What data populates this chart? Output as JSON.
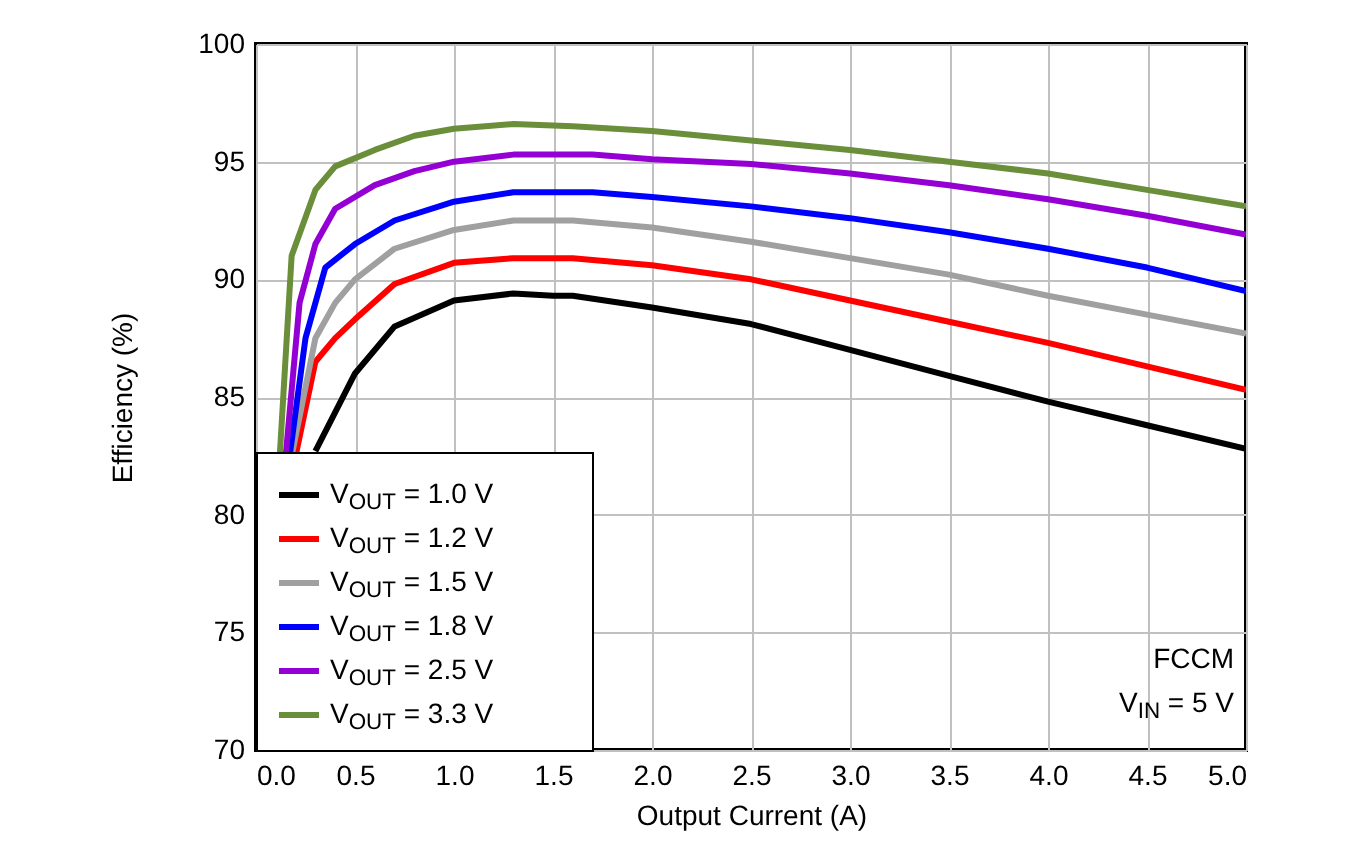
{
  "chart_data": {
    "type": "line",
    "xlabel": "Output Current (A)",
    "ylabel": "Efficiency  (%)",
    "xlim": [
      0,
      5
    ],
    "ylim": [
      70,
      100
    ],
    "xticks": [
      {
        "value": 0,
        "label": "0.0"
      },
      {
        "value": 0.5,
        "label": "0.5"
      },
      {
        "value": 1,
        "label": "1.0"
      },
      {
        "value": 1.5,
        "label": "1.5"
      },
      {
        "value": 2,
        "label": "2.0"
      },
      {
        "value": 2.5,
        "label": "2.5"
      },
      {
        "value": 3,
        "label": "3.0"
      },
      {
        "value": 3.5,
        "label": "3.5"
      },
      {
        "value": 4,
        "label": "4.0"
      },
      {
        "value": 4.5,
        "label": "4.5"
      },
      {
        "value": 5,
        "label": "5.0"
      }
    ],
    "yticks": [
      70,
      75,
      80,
      85,
      90,
      95,
      100
    ],
    "grid": true,
    "legend": "bottom left",
    "line_style": "solid",
    "annotations": [
      "FCCM",
      "V$_{IN}$ = 5 V"
    ],
    "series": [
      {
        "name": "V$_{OUT}$ = 1.0 V",
        "color": "#000000",
        "x": [
          0.3,
          0.5,
          0.7,
          1.0,
          1.3,
          1.5,
          1.6,
          2.0,
          2.5,
          3.0,
          3.5,
          4.0,
          4.5,
          5.0
        ],
        "values": [
          82.7,
          86,
          88,
          89.1,
          89.4,
          89.3,
          89.3,
          88.8,
          88.1,
          87.0,
          85.9,
          84.8,
          83.8,
          82.8
        ]
      },
      {
        "name": "V$_{OUT}$ = 1.2 V",
        "color": "#ff0000",
        "x": [
          0.2,
          0.3,
          0.4,
          0.5,
          0.7,
          1.0,
          1.3,
          1.6,
          2.0,
          2.5,
          3.0,
          3.5,
          4.0,
          4.5,
          5.0
        ],
        "values": [
          82.5,
          86.5,
          87.5,
          88.3,
          89.8,
          90.7,
          90.9,
          90.9,
          90.6,
          90.0,
          89.1,
          88.2,
          87.3,
          86.3,
          85.3
        ]
      },
      {
        "name": "V$_{OUT}$ = 1.5 V",
        "color": "#a0a0a0",
        "x": [
          0.18,
          0.3,
          0.4,
          0.5,
          0.7,
          1.0,
          1.3,
          1.6,
          2.0,
          2.5,
          3.0,
          3.5,
          4.0,
          4.5,
          5.0
        ],
        "values": [
          82.5,
          87.5,
          89,
          90,
          91.3,
          92.1,
          92.5,
          92.5,
          92.2,
          91.6,
          90.9,
          90.2,
          89.3,
          88.5,
          87.7
        ]
      },
      {
        "name": "V$_{OUT}$ = 1.8 V",
        "color": "#0000ff",
        "x": [
          0.17,
          0.25,
          0.35,
          0.5,
          0.7,
          1.0,
          1.3,
          1.7,
          2.0,
          2.5,
          3.0,
          3.5,
          4.0,
          4.5,
          5.0
        ],
        "values": [
          82.5,
          87.5,
          90.5,
          91.5,
          92.5,
          93.3,
          93.7,
          93.7,
          93.5,
          93.1,
          92.6,
          92.0,
          91.3,
          90.5,
          89.5
        ]
      },
      {
        "name": "V$_{OUT}$ = 2.5 V",
        "color": "#9400d3",
        "x": [
          0.15,
          0.22,
          0.3,
          0.4,
          0.6,
          0.8,
          1.0,
          1.3,
          1.7,
          2.0,
          2.5,
          3.0,
          3.5,
          4.0,
          4.5,
          5.0
        ],
        "values": [
          82.5,
          89,
          91.5,
          93,
          94,
          94.6,
          95.0,
          95.3,
          95.3,
          95.1,
          94.9,
          94.5,
          94.0,
          93.4,
          92.7,
          91.9
        ]
      },
      {
        "name": "V$_{OUT}$ = 3.3 V",
        "color": "#6b8e3a",
        "x": [
          0.12,
          0.18,
          0.3,
          0.4,
          0.6,
          0.8,
          1.0,
          1.3,
          1.6,
          2.0,
          2.5,
          3.0,
          3.5,
          4.0,
          4.5,
          5.0
        ],
        "values": [
          82.5,
          91,
          93.8,
          94.8,
          95.5,
          96.1,
          96.4,
          96.6,
          96.5,
          96.3,
          95.9,
          95.5,
          95.0,
          94.5,
          93.8,
          93.1
        ]
      }
    ]
  }
}
